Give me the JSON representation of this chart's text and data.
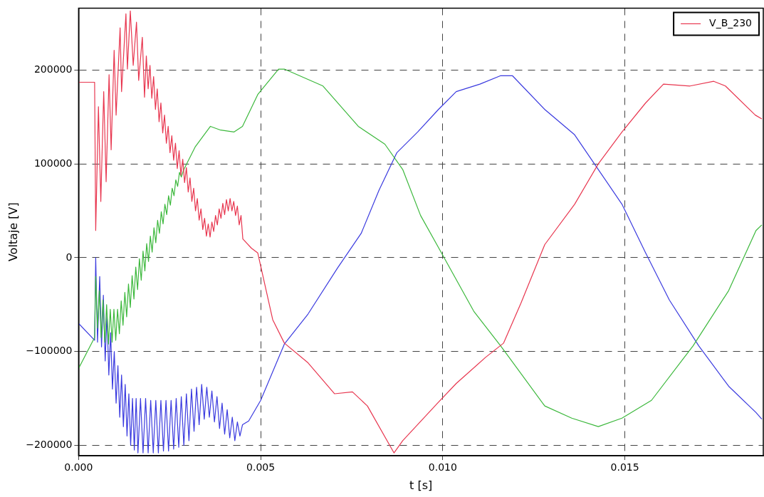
{
  "chart_data": {
    "type": "line",
    "xlabel": "t [s]",
    "ylabel": "Voltaje [V]",
    "xlim": [
      0,
      0.0188
    ],
    "ylim": [
      -211000,
      266000
    ],
    "xticks": [
      {
        "value": 0,
        "label": "0.000"
      },
      {
        "value": 0.005,
        "label": "0.005"
      },
      {
        "value": 0.01,
        "label": "0.010"
      },
      {
        "value": 0.015,
        "label": "0.015"
      }
    ],
    "yticks": [
      {
        "value": -200000,
        "label": "−200000"
      },
      {
        "value": -100000,
        "label": "−100000"
      },
      0,
      100000,
      200000
    ],
    "grid": true,
    "legend": "top right",
    "marker": "none",
    "line_style": "solid",
    "series": [
      {
        "name": "V_B_230",
        "color": "#e8364f",
        "x": [
          0,
          0.00044,
          0.00047,
          0.000545,
          0.00061,
          0.00069,
          0.000756,
          0.000837,
          0.000894,
          0.000976,
          0.00103,
          0.00114,
          0.00118,
          0.0013,
          0.00134,
          0.00142,
          0.0015,
          0.00159,
          0.00165,
          0.00175,
          0.00181,
          0.00186,
          0.00191,
          0.00196,
          0.00201,
          0.00206,
          0.00211,
          0.00216,
          0.00221,
          0.00226,
          0.00231,
          0.00236,
          0.00241,
          0.00246,
          0.00251,
          0.00256,
          0.00261,
          0.00266,
          0.00271,
          0.00276,
          0.00281,
          0.00286,
          0.00291,
          0.00296,
          0.00301,
          0.00306,
          0.00311,
          0.00316,
          0.00321,
          0.00326,
          0.00331,
          0.00336,
          0.00341,
          0.00346,
          0.00351,
          0.00356,
          0.00361,
          0.00366,
          0.00371,
          0.00376,
          0.00381,
          0.00386,
          0.00391,
          0.00396,
          0.00401,
          0.00406,
          0.00411,
          0.00416,
          0.00421,
          0.00426,
          0.00431,
          0.00436,
          0.00441,
          0.00446,
          0.00451,
          0.00475,
          0.00492,
          0.00533,
          0.00565,
          0.0063,
          0.00703,
          0.00752,
          0.00793,
          0.00866,
          0.0089,
          0.00988,
          0.01037,
          0.01118,
          0.01167,
          0.01215,
          0.0128,
          0.01362,
          0.01427,
          0.01492,
          0.01557,
          0.01606,
          0.01679,
          0.01744,
          0.01776,
          0.01858,
          0.01876
        ],
        "values": [
          187000,
          187000,
          29000,
          161000,
          60000,
          177000,
          81000,
          195000,
          115000,
          221000,
          152000,
          245000,
          177000,
          260000,
          201000,
          263000,
          205000,
          251000,
          189000,
          235000,
          171000,
          215000,
          180000,
          205000,
          170000,
          193000,
          158000,
          180000,
          145000,
          165000,
          133000,
          152000,
          122000,
          140000,
          112000,
          130000,
          104000,
          122000,
          95000,
          114000,
          88000,
          105000,
          80000,
          96000,
          70000,
          85000,
          60000,
          74000,
          50000,
          63000,
          40000,
          52000,
          30000,
          42000,
          23000,
          36000,
          22000,
          38000,
          28000,
          45000,
          35000,
          52000,
          42000,
          58000,
          46000,
          62000,
          50000,
          63000,
          50000,
          60000,
          45000,
          55000,
          35000,
          45000,
          20000,
          10000,
          5000,
          -66000,
          -91000,
          -112000,
          -145000,
          -143000,
          -158000,
          -208000,
          -195000,
          -154000,
          -134000,
          -106000,
          -91000,
          -48000,
          14000,
          57000,
          100000,
          134000,
          165000,
          185000,
          183000,
          188000,
          183000,
          152000,
          148000
        ]
      },
      {
        "color": "#3cb83c",
        "x": [
          0,
          0.00044,
          0.00047,
          0.00052,
          0.00057,
          0.00062,
          0.00067,
          0.00072,
          0.00077,
          0.00082,
          0.00087,
          0.00092,
          0.00097,
          0.00102,
          0.00107,
          0.00112,
          0.00117,
          0.00122,
          0.00127,
          0.00132,
          0.00137,
          0.00142,
          0.00147,
          0.00152,
          0.00157,
          0.00162,
          0.00167,
          0.00172,
          0.00177,
          0.00182,
          0.00187,
          0.00192,
          0.00197,
          0.00202,
          0.00207,
          0.00212,
          0.00217,
          0.00222,
          0.00227,
          0.00232,
          0.00237,
          0.00242,
          0.00247,
          0.00252,
          0.00257,
          0.00262,
          0.00267,
          0.00272,
          0.00277,
          0.00282,
          0.00289,
          0.0032,
          0.00362,
          0.0039,
          0.00427,
          0.0045,
          0.00492,
          0.00549,
          0.00565,
          0.00671,
          0.00768,
          0.00841,
          0.0089,
          0.00939,
          0.00988,
          0.01085,
          0.01159,
          0.0128,
          0.01354,
          0.01427,
          0.01492,
          0.01573,
          0.01687,
          0.01785,
          0.0186,
          0.01876
        ],
        "values": [
          -118000,
          -85000,
          -20000,
          -75000,
          -35000,
          -85000,
          -45000,
          -90000,
          -50000,
          -92000,
          -55000,
          -90000,
          -55000,
          -88000,
          -55000,
          -81000,
          -46000,
          -72000,
          -37000,
          -63000,
          -28000,
          -53000,
          -19000,
          -44000,
          -10000,
          -34000,
          -1000,
          -24000,
          7000,
          -14000,
          15000,
          -4000,
          23000,
          6000,
          32000,
          16000,
          40000,
          26000,
          49000,
          36000,
          57000,
          46000,
          66000,
          56000,
          74000,
          66000,
          83000,
          76000,
          91000,
          86000,
          94000,
          118000,
          140000,
          136000,
          134000,
          140000,
          174000,
          201000,
          201000,
          183000,
          140000,
          121000,
          94000,
          45000,
          11000,
          -57000,
          -94000,
          -158000,
          -171000,
          -180000,
          -171000,
          -152000,
          -94000,
          -35000,
          29000,
          35000
        ]
      },
      {
        "color": "#3a3adf",
        "x": [
          0,
          0.00044,
          0.00047,
          0.00052,
          0.00058,
          0.00063,
          0.00068,
          0.00073,
          0.00078,
          0.00083,
          0.00088,
          0.00093,
          0.00098,
          0.00103,
          0.00108,
          0.00113,
          0.00118,
          0.00123,
          0.00128,
          0.00133,
          0.00138,
          0.00143,
          0.00148,
          0.00153,
          0.00158,
          0.00163,
          0.0017,
          0.00177,
          0.00184,
          0.00191,
          0.00198,
          0.00205,
          0.00212,
          0.00219,
          0.00226,
          0.00233,
          0.0024,
          0.00247,
          0.00254,
          0.00261,
          0.00268,
          0.00275,
          0.00282,
          0.00289,
          0.00296,
          0.00303,
          0.0031,
          0.00317,
          0.00324,
          0.00331,
          0.00338,
          0.00345,
          0.00352,
          0.00359,
          0.00366,
          0.00373,
          0.0038,
          0.00387,
          0.00394,
          0.00401,
          0.00408,
          0.00415,
          0.00422,
          0.00429,
          0.00436,
          0.00443,
          0.0045,
          0.00467,
          0.005,
          0.00565,
          0.0063,
          0.00711,
          0.00776,
          0.00825,
          0.00874,
          0.00931,
          0.00988,
          0.01037,
          0.01102,
          0.01159,
          0.01191,
          0.0128,
          0.01362,
          0.01427,
          0.01492,
          0.01557,
          0.01622,
          0.01703,
          0.01785,
          0.0186,
          0.01876
        ],
        "values": [
          -70000,
          -88000,
          0,
          -90000,
          -20000,
          -95000,
          -40000,
          -110000,
          -60000,
          -125000,
          -80000,
          -140000,
          -100000,
          -155000,
          -115000,
          -170000,
          -125000,
          -180000,
          -135000,
          -190000,
          -145000,
          -200000,
          -150000,
          -205000,
          -150000,
          -208000,
          -150000,
          -208000,
          -150000,
          -208000,
          -152000,
          -208000,
          -152000,
          -208000,
          -152000,
          -206000,
          -152000,
          -206000,
          -152000,
          -204000,
          -150000,
          -202000,
          -148000,
          -200000,
          -145000,
          -195000,
          -140000,
          -185000,
          -138000,
          -178000,
          -135000,
          -172000,
          -138000,
          -170000,
          -142000,
          -175000,
          -148000,
          -182000,
          -155000,
          -188000,
          -162000,
          -192000,
          -170000,
          -195000,
          -175000,
          -190000,
          -178000,
          -174000,
          -152000,
          -92000,
          -60000,
          -11000,
          26000,
          72000,
          112000,
          134000,
          158000,
          177000,
          185000,
          194000,
          194000,
          158000,
          131000,
          94000,
          57000,
          5000,
          -45000,
          -94000,
          -137000,
          -165000,
          -172000
        ]
      }
    ]
  }
}
